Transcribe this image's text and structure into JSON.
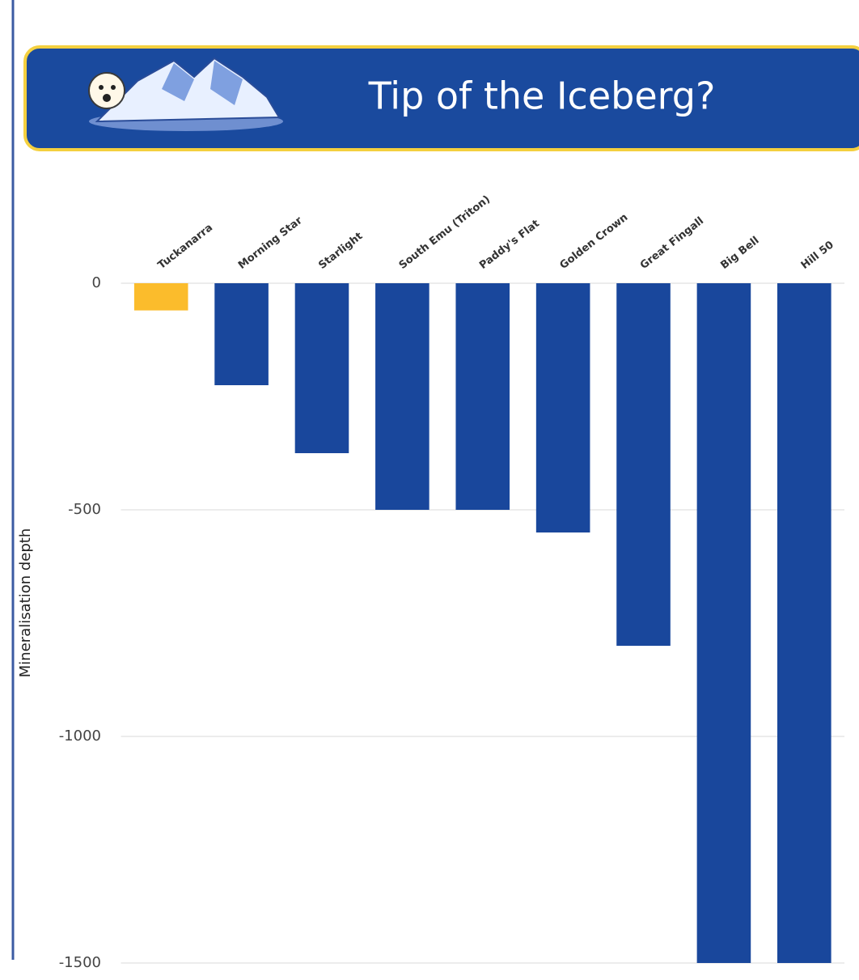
{
  "chart_data": {
    "type": "bar",
    "title": "Tip of the Iceberg?",
    "y_label": "Mineralisation depth",
    "categories": [
      "Tuckanarra",
      "Morning Star",
      "Starlight",
      "South Emu (Triton)",
      "Paddy's Flat",
      "Golden Crown",
      "Great Fingall",
      "Big Bell",
      "Hill 50"
    ],
    "values": [
      -60,
      -225,
      -375,
      -500,
      -500,
      -550,
      -800,
      -1500,
      -1500
    ],
    "colors": [
      "#fbbc2c",
      "#19479c",
      "#19479c",
      "#19479c",
      "#19479c",
      "#19479c",
      "#19479c",
      "#19479c",
      "#19479c"
    ],
    "ylim": [
      -1500,
      0
    ],
    "yticks": [
      0,
      -500,
      -1000,
      -1500
    ],
    "grid": true
  }
}
